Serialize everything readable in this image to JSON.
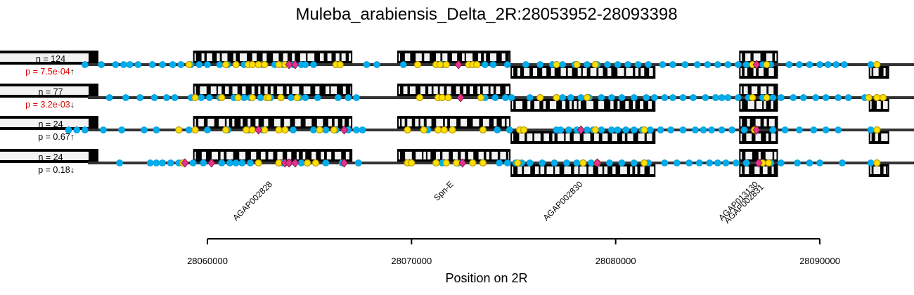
{
  "chart_data": {
    "type": "scatter",
    "title": "Muleba_arabiensis_Delta_2R:28053952-28093398",
    "xlabel": "Position on 2R",
    "xlim": [
      28053952,
      28093398
    ],
    "x_ticks": [
      28060000,
      28070000,
      28080000,
      28090000
    ],
    "x_tick_labels": [
      "28060000",
      "28070000",
      "28080000",
      "28090000"
    ],
    "colors": {
      "blue": "#00aeef",
      "yellow": "#ffe000",
      "magenta": "#e8318a",
      "track": "#333333",
      "gene": "#000000",
      "intron": "#f2f2f2"
    },
    "genes": [
      {
        "name": "AGAP002828",
        "start": 28059300,
        "end": 28067100,
        "strand": "+"
      },
      {
        "name": "Spn-E",
        "start": 28069300,
        "end": 28074850,
        "strand": "+"
      },
      {
        "name": "AGAP002830",
        "start": 28074850,
        "end": 28081950,
        "strand": "-"
      },
      {
        "name": "AGAP013130",
        "start": 28086050,
        "end": 28087950,
        "strand": "+"
      },
      {
        "name": "AGAP002831",
        "start": 28086050,
        "end": 28087950,
        "strand": "-"
      },
      {
        "name": "",
        "start": 28092400,
        "end": 28093398,
        "strand": "-"
      }
    ],
    "tracks": [
      {
        "n": "n = 124",
        "p": "p = 7.5e-04↑",
        "significant": true,
        "blue": [
          28054000,
          28054800,
          28055500,
          28055900,
          28056200,
          28056600,
          28057300,
          28057800,
          28058300,
          28058700,
          28059200,
          28059600,
          28060000,
          28060600,
          28061000,
          28061800,
          28062700,
          28063300,
          28063700,
          28064200,
          28064600,
          28064800,
          28065200,
          28067800,
          28068300,
          28069600,
          28071500,
          28073000,
          28073600,
          28074000,
          28074700,
          28075600,
          28076300,
          28076900,
          28077400,
          28078000,
          28078600,
          28079100,
          28079600,
          28080100,
          28080600,
          28081100,
          28081600,
          28082300,
          28082800,
          28083400,
          28084000,
          28084500,
          28085000,
          28085500,
          28086000,
          28086400,
          28087200,
          28087600,
          28088500,
          28089000,
          28089500,
          28090000,
          28090400,
          28090800,
          28091200,
          28092500
        ],
        "yellow": [
          28059100,
          28060900,
          28061400,
          28062000,
          28062200,
          28062500,
          28062800,
          28063500,
          28063800,
          28066300,
          28066500,
          28070300,
          28071200,
          28071400,
          28071700,
          28072800,
          28073000,
          28073200,
          28077100,
          28078100,
          28079000,
          28086700,
          28087400,
          28092800
        ],
        "magenta": [
          28064000,
          28064300,
          28072300,
          28086900
        ]
      },
      {
        "n": "n = 77",
        "p": "p = 3.2e-03↓",
        "significant": true,
        "blue": [
          28055200,
          28056000,
          28056700,
          28057400,
          28058000,
          28058400,
          28059200,
          28059700,
          28060100,
          28060600,
          28061300,
          28061800,
          28062100,
          28062600,
          28063100,
          28063600,
          28064100,
          28064500,
          28064800,
          28065400,
          28066400,
          28066900,
          28067300,
          28071500,
          28073600,
          28074100,
          28074600,
          28074900,
          28075800,
          28077100,
          28077400,
          28077800,
          28078300,
          28078700,
          28079300,
          28079800,
          28080300,
          28080900,
          28081500,
          28081900,
          28082400,
          28082800,
          28083300,
          28083800,
          28084400,
          28084900,
          28085200,
          28085500,
          28086000,
          28086500,
          28087200,
          28087700,
          28088100,
          28088700,
          28089200,
          28089800,
          28090300,
          28090900,
          28091400,
          28092200
        ],
        "yellow": [
          28059400,
          28060700,
          28061500,
          28062200,
          28062900,
          28063000,
          28063600,
          28064400,
          28070400,
          28071300,
          28071500,
          28071800,
          28073400,
          28076300,
          28077100,
          28078600,
          28086700,
          28087400,
          28092400,
          28092800,
          28093100
        ],
        "magenta": [
          28072400
        ]
      },
      {
        "n": "n = 24",
        "p": "p = 0.67↑",
        "significant": false,
        "blue": [
          28053200,
          28053600,
          28054000,
          28054900,
          28055800,
          28056900,
          28057500,
          28059100,
          28060000,
          28061000,
          28062000,
          28062700,
          28064200,
          28065200,
          28065800,
          28066300,
          28066900,
          28067300,
          28067600,
          28070800,
          28074200,
          28074800,
          28077100,
          28077300,
          28077700,
          28078100,
          28078600,
          28078900,
          28079300,
          28079800,
          28080100,
          28080500,
          28080900,
          28081300,
          28081700,
          28082200,
          28082700,
          28083300,
          28083900,
          28084300,
          28084700,
          28085200,
          28085700,
          28086300,
          28087700,
          28088300,
          28089000,
          28089700,
          28090300,
          28090900,
          28092500
        ],
        "yellow": [
          28058600,
          28059400,
          28060900,
          28061900,
          28062200,
          28062800,
          28063500,
          28063800,
          28065500,
          28066200,
          28069800,
          28070600,
          28071300,
          28071600,
          28072000,
          28073500,
          28075300,
          28075500,
          28079000,
          28081400,
          28086800,
          28092800
        ],
        "magenta": [
          28062500,
          28066700,
          28078300,
          28086900
        ]
      },
      {
        "n": "n = 24",
        "p": "p = 0.18↓",
        "significant": false,
        "blue": [
          28055700,
          28057200,
          28057500,
          28057800,
          28058200,
          28058600,
          28059300,
          28059800,
          28060700,
          28061100,
          28061400,
          28061700,
          28062100,
          28063500,
          28063700,
          28064000,
          28064600,
          28065800,
          28066600,
          28067400,
          28071500,
          28072300,
          28073500,
          28074300,
          28074700,
          28075100,
          28075400,
          28075800,
          28076400,
          28077000,
          28077600,
          28078100,
          28078800,
          28079700,
          28080300,
          28080900,
          28081600,
          28082400,
          28083000,
          28083600,
          28084100,
          28084600,
          28085000,
          28085400,
          28085900,
          28086400,
          28087600,
          28088100,
          28088900,
          28089500,
          28090000,
          28091100,
          28092500
        ],
        "yellow": [
          28058800,
          28062500,
          28063500,
          28064900,
          28065300,
          28069800,
          28070000,
          28071200,
          28071700,
          28072200,
          28073000,
          28073500,
          28075200,
          28078400,
          28079100,
          28081400,
          28087200,
          28087500,
          28092800
        ],
        "magenta": [
          28058900,
          28060200,
          28063800,
          28064000,
          28064300,
          28066700,
          28072500,
          28079100,
          28087000
        ]
      }
    ]
  }
}
